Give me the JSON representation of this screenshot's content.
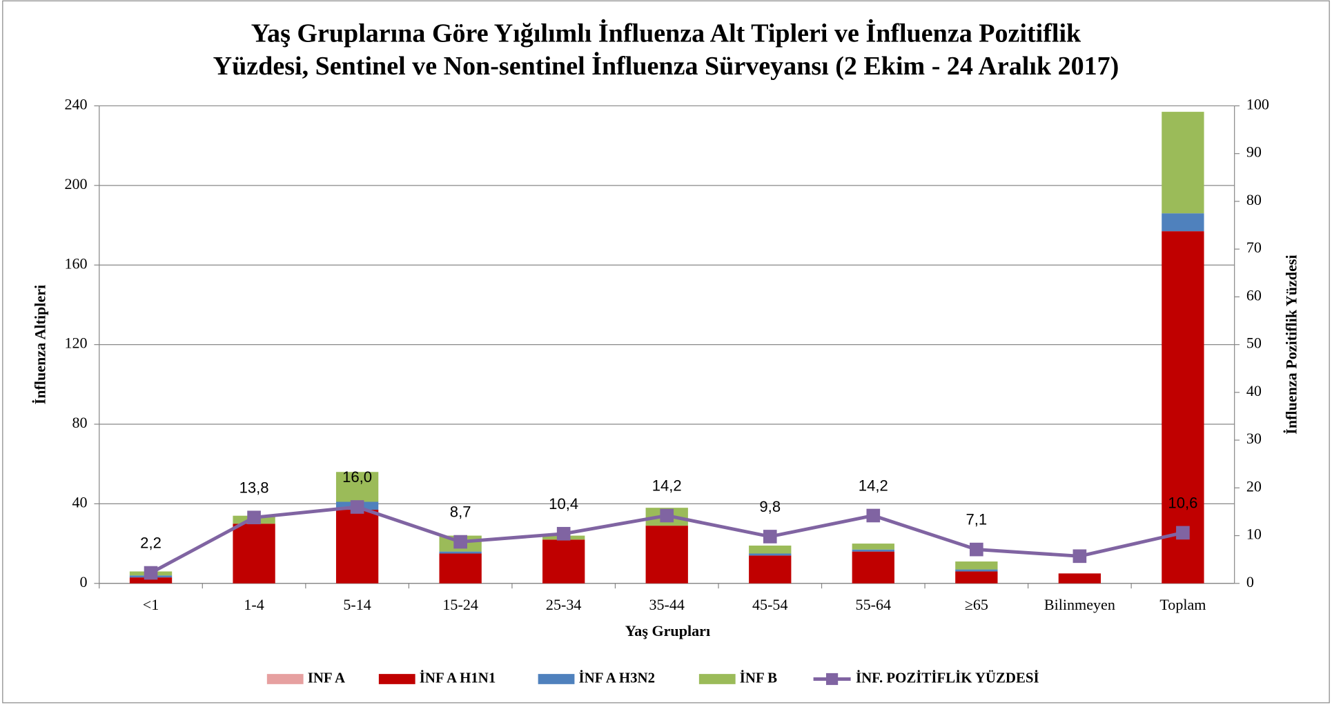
{
  "chart_data": {
    "type": "stacked_bar_line",
    "title": [
      "Yaş Gruplarına Göre Yığılımlı İnfluenza Alt Tipleri ve İnfluenza Pozitiflik",
      "Yüzdesi, Sentinel ve Non-sentinel İnfluenza Sürveyansı (2 Ekim - 24 Aralık 2017)"
    ],
    "x_label": "Yaş Grupları",
    "y_label": "İnfluenza Altipleri",
    "y2_label": "İnfluenza Pozitiflik Yüzdesi",
    "categories": [
      "<1",
      "1-4",
      "5-14",
      "15-24",
      "25-34",
      "35-44",
      "45-54",
      "55-64",
      "≥65",
      "Bilinmeyen",
      "Toplam"
    ],
    "series": [
      {
        "name": "INF A",
        "color": "#e6a0a0",
        "values": [
          0,
          0,
          0,
          0,
          0,
          0,
          0,
          0,
          0,
          0,
          0
        ]
      },
      {
        "name": "İNF A H1N1",
        "color": "#c00000",
        "values": [
          3,
          30,
          37,
          15,
          22,
          29,
          14,
          16,
          6,
          5,
          177
        ]
      },
      {
        "name": "İNF A H3N2",
        "color": "#4f81bd",
        "values": [
          1,
          0,
          4,
          1,
          0,
          0,
          1,
          1,
          1,
          0,
          9
        ]
      },
      {
        "name": "İNF B",
        "color": "#9bbb59",
        "values": [
          2,
          4,
          15,
          8,
          2,
          9,
          4,
          3,
          4,
          0,
          51
        ]
      },
      {
        "name": "İNF. POZİTİFLİK YÜZDESİ",
        "color": "#8064a2",
        "axis": "y2",
        "type": "line",
        "values": [
          2.2,
          13.8,
          16.0,
          8.7,
          10.4,
          14.2,
          9.8,
          14.2,
          7.1,
          5.7,
          10.6
        ],
        "value_labels": [
          "2,2",
          "13,8",
          "16,0",
          "8,7",
          "10,4",
          "14,2",
          "9,8",
          "14,2",
          "7,1",
          null,
          "10,6"
        ]
      }
    ],
    "ylim": [
      0,
      240
    ],
    "yticks": [
      0,
      40,
      80,
      120,
      160,
      200,
      240
    ],
    "y2lim": [
      0,
      100
    ],
    "y2ticks": [
      0,
      10,
      20,
      30,
      40,
      50,
      60,
      70,
      80,
      90,
      100
    ],
    "grid": true,
    "legend": "bottom"
  }
}
